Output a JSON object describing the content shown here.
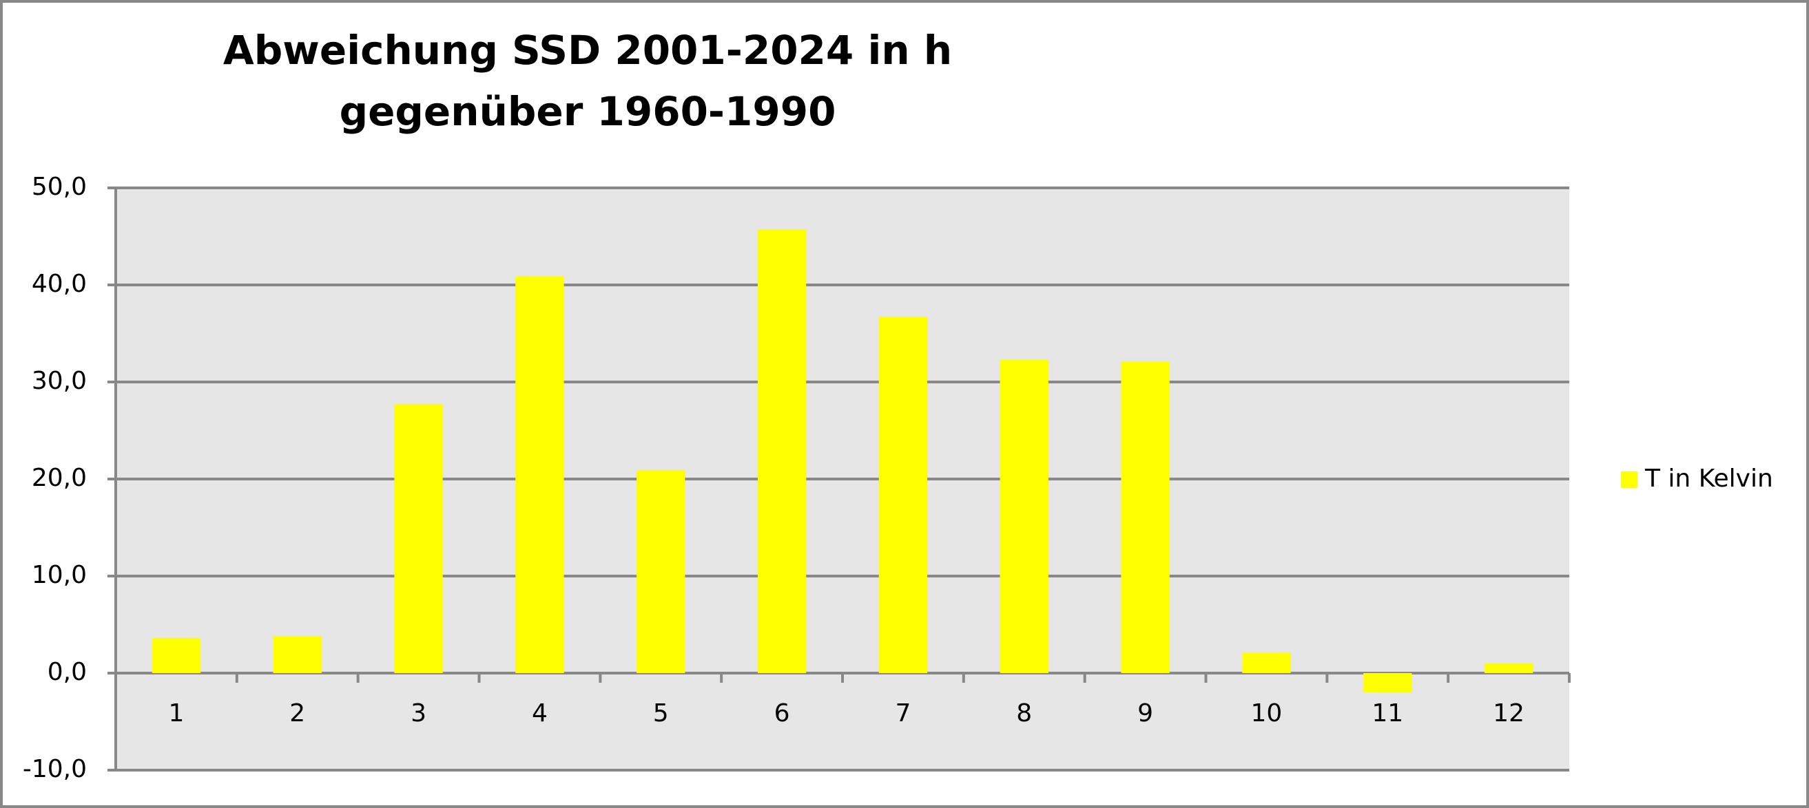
{
  "chart_data": {
    "type": "bar",
    "title": [
      "Abweichung SSD 2001-2024 in h",
      "gegenüber 1960-1990"
    ],
    "categories": [
      "1",
      "2",
      "3",
      "4",
      "5",
      "6",
      "7",
      "8",
      "9",
      "10",
      "11",
      "12"
    ],
    "series": [
      {
        "name": "T in Kelvin",
        "color": "#ffff00",
        "values": [
          3.6,
          3.8,
          27.7,
          40.9,
          20.9,
          45.7,
          36.7,
          32.3,
          32.1,
          2.1,
          -2.0,
          1.0
        ]
      }
    ],
    "ylim": [
      -10,
      50
    ],
    "yticks": [
      {
        "value": -10,
        "label": "-10,0"
      },
      {
        "value": 0,
        "label": "0,0"
      },
      {
        "value": 10,
        "label": "10,0"
      },
      {
        "value": 20,
        "label": "20,0"
      },
      {
        "value": 30,
        "label": "30,0"
      },
      {
        "value": 40,
        "label": "40,0"
      },
      {
        "value": 50,
        "label": "50,0"
      }
    ],
    "grid": true,
    "legend": "right"
  }
}
